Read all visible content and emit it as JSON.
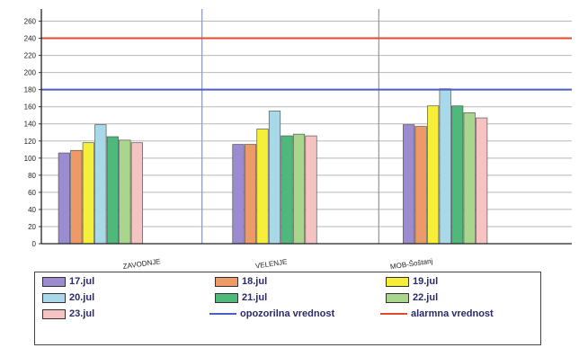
{
  "chart_data": {
    "type": "bar",
    "categories": [
      "ZAVODNJE",
      "VELENJE",
      "MOB-Šoštanj"
    ],
    "series": [
      {
        "name": "17.jul",
        "color": "#9b8bd0",
        "values": [
          106,
          116,
          139
        ]
      },
      {
        "name": "18.jul",
        "color": "#ee9a66",
        "values": [
          109,
          116,
          137
        ]
      },
      {
        "name": "19.jul",
        "color": "#f6ef3a",
        "values": [
          118,
          134,
          161
        ]
      },
      {
        "name": "20.jul",
        "color": "#a9d8e8",
        "values": [
          139,
          155,
          181
        ]
      },
      {
        "name": "21.jul",
        "color": "#4fb87b",
        "values": [
          125,
          126,
          161
        ]
      },
      {
        "name": "22.jul",
        "color": "#a9d68c",
        "values": [
          121,
          128,
          153
        ]
      },
      {
        "name": "23.jul",
        "color": "#f6c2c2",
        "values": [
          118,
          126,
          147
        ]
      }
    ],
    "reference_lines": [
      {
        "name": "opozorilna vrednost",
        "value": 180,
        "color": "#4a5fc0"
      },
      {
        "name": "alarmna vrednost",
        "value": 240,
        "color": "#e04a2a"
      }
    ],
    "yticks": [
      0,
      20,
      40,
      60,
      80,
      100,
      120,
      140,
      160,
      180,
      200,
      220,
      240,
      260
    ],
    "ylim": [
      0,
      270
    ],
    "grid": true,
    "legend_position": "bottom"
  }
}
